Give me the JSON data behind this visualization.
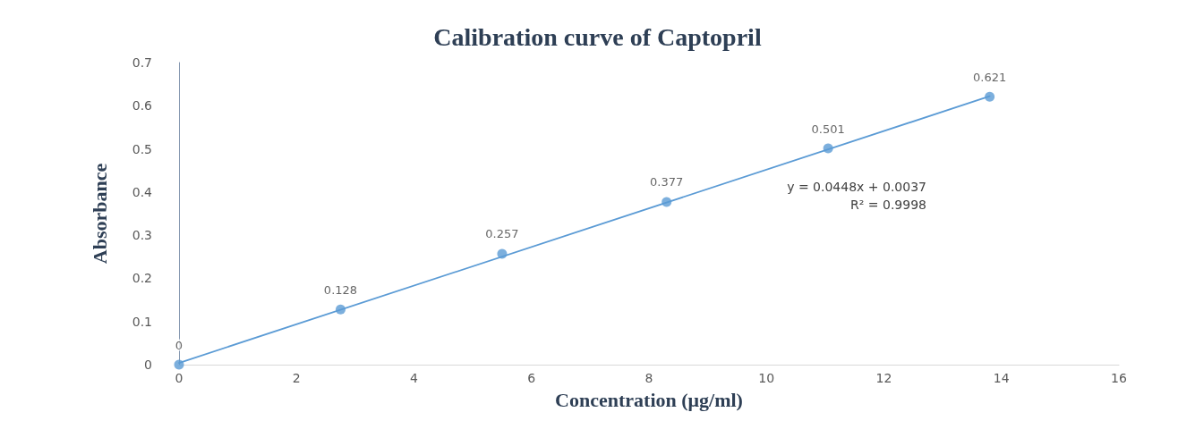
{
  "chart_data": {
    "type": "scatter",
    "title": "Calibration curve of Captopril",
    "xlabel": "Concentration (μg/ml)",
    "ylabel": "Absorbance",
    "x": [
      0,
      2.75,
      5.5,
      8.3,
      11.05,
      13.8
    ],
    "series": [
      {
        "color": "#5b9bd5",
        "values": [
          0,
          0.128,
          0.257,
          0.377,
          0.501,
          0.621
        ],
        "data_labels": true,
        "marker": "circle"
      },
      {
        "type": "line",
        "color": "#5b9bd5",
        "x": [
          0,
          13.8
        ],
        "values": [
          0.004,
          0.622
        ],
        "marker": "none",
        "line_style": "solid"
      }
    ],
    "annotations": [
      "y = 0.0448x + 0.0037",
      "R² = 0.9998"
    ],
    "xlim": [
      0,
      16
    ],
    "xticks": [
      0,
      2,
      4,
      6,
      8,
      10,
      12,
      14,
      16
    ],
    "ylim": [
      0,
      0.7
    ],
    "yticks": [
      0,
      0.1,
      0.2,
      0.3,
      0.4,
      0.5,
      0.6,
      0.7
    ],
    "grid": false
  }
}
